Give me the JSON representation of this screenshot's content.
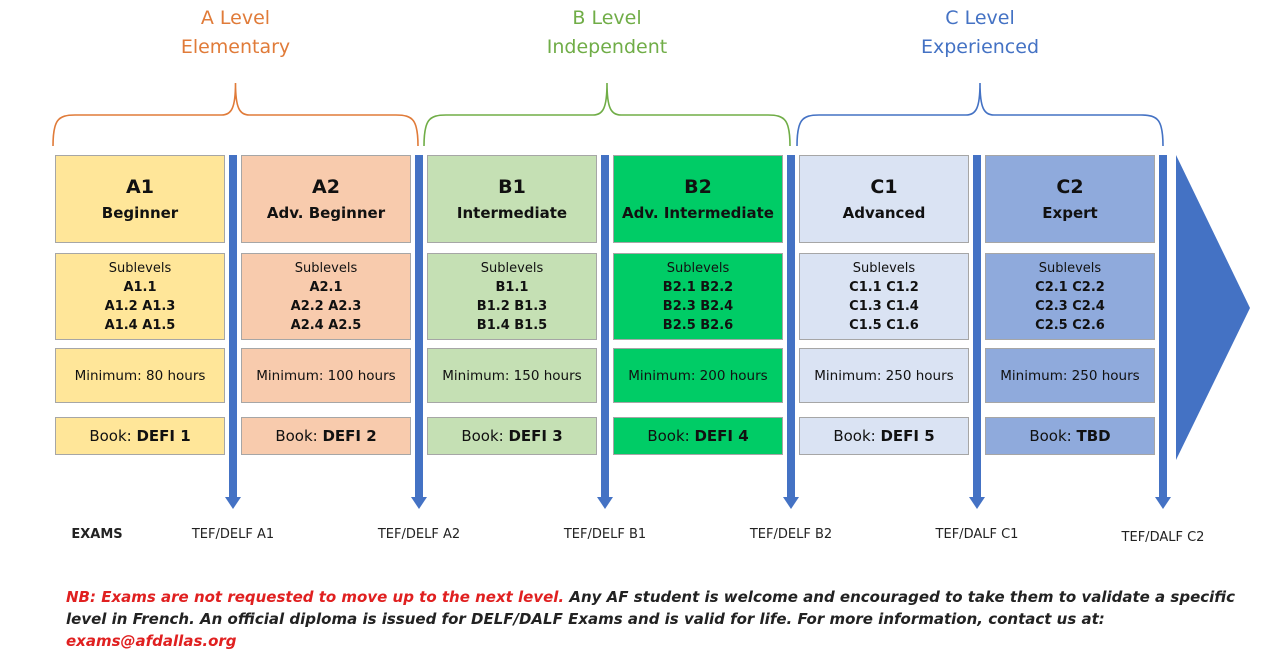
{
  "levels": [
    {
      "title": "A Level",
      "subtitle": "Elementary"
    },
    {
      "title": "B Level",
      "subtitle": "Independent"
    },
    {
      "title": "C Level",
      "subtitle": "Experienced"
    }
  ],
  "columns": [
    {
      "code": "A1",
      "name": "Beginner",
      "sublevels_label": "Sublevels",
      "sublevels": [
        "A1.1",
        "A1.2 A1.3",
        "A1.4 A1.5"
      ],
      "minimum": "Minimum:  80 hours",
      "book_label": "Book:",
      "book": "DEFI 1"
    },
    {
      "code": "A2",
      "name": "Adv. Beginner",
      "sublevels_label": "Sublevels",
      "sublevels": [
        "A2.1",
        "A2.2 A2.3",
        "A2.4 A2.5"
      ],
      "minimum": "Minimum:  100 hours",
      "book_label": "Book:",
      "book": "DEFI 2"
    },
    {
      "code": "B1",
      "name": "Intermediate",
      "sublevels_label": "Sublevels",
      "sublevels": [
        "B1.1",
        "B1.2 B1.3",
        "B1.4 B1.5"
      ],
      "minimum": "Minimum:  150 hours",
      "book_label": "Book:",
      "book": "DEFI 3"
    },
    {
      "code": "B2",
      "name": "Adv. Intermediate",
      "sublevels_label": "Sublevels",
      "sublevels": [
        "B2.1 B2.2",
        "B2.3 B2.4",
        "B2.5 B2.6"
      ],
      "minimum": "Minimum:  200 hours",
      "book_label": "Book:",
      "book": "DEFI 4"
    },
    {
      "code": "C1",
      "name": "Advanced",
      "sublevels_label": "Sublevels",
      "sublevels": [
        "C1.1 C1.2",
        "C1.3 C1.4",
        "C1.5 C1.6"
      ],
      "minimum": "Minimum:  250 hours",
      "book_label": "Book:",
      "book": "DEFI 5"
    },
    {
      "code": "C2",
      "name": "Expert",
      "sublevels_label": "Sublevels",
      "sublevels": [
        "C2.1 C2.2",
        "C2.3 C2.4",
        "C2.5 C2.6"
      ],
      "minimum": "Minimum:  250 hours",
      "book_label": "Book:",
      "book": "TBD"
    }
  ],
  "exams_label": "EXAMS",
  "exams": [
    "TEF/DELF A1",
    "TEF/DELF A2",
    "TEF/DELF B1",
    "TEF/DELF B2",
    "TEF/DALF C1",
    "TEF/DALF C2"
  ],
  "note": {
    "lead": "NB: Exams are not requested to move up to the next level.",
    "body": " Any AF student is welcome and encouraged to take them to validate a specific level in French. An official diploma is issued for DELF/DALF Exams and is valid for life. For more information, contact us at: ",
    "email": "exams@afdallas.org"
  }
}
